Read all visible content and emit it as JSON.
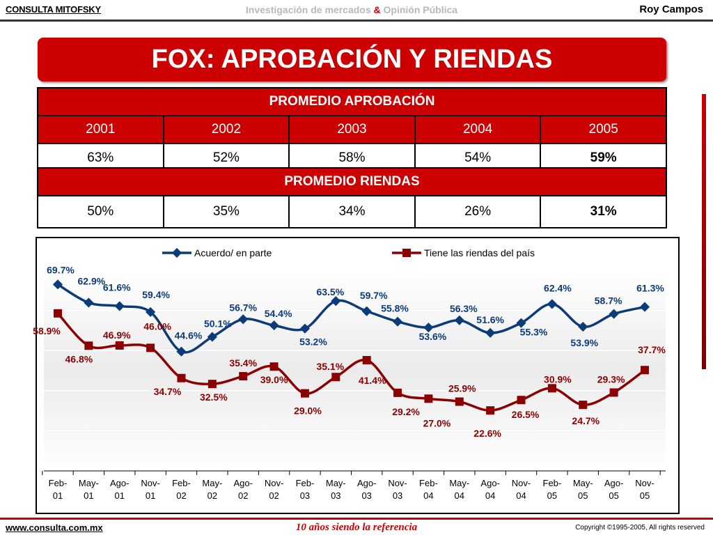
{
  "header": {
    "brand": "CONSULTA MITOFSKY",
    "tagline_part1": "Investigación de mercados ",
    "tagline_amp": "&",
    "tagline_part2": " Opinión Pública",
    "author": "Roy Campos"
  },
  "title": "FOX: APROBACIÓN Y RIENDAS",
  "approval_table": {
    "header": "PROMEDIO APROBACIÓN",
    "years": [
      "2001",
      "2002",
      "2003",
      "2004",
      "2005"
    ],
    "values": [
      "63%",
      "52%",
      "58%",
      "54%",
      "59%"
    ]
  },
  "reins_table": {
    "header": "PROMEDIO RIENDAS",
    "values": [
      "50%",
      "35%",
      "34%",
      "26%",
      "31%"
    ]
  },
  "chart_data": {
    "type": "line",
    "x": [
      "Feb-01",
      "May-01",
      "Ago-01",
      "Nov-01",
      "Feb-02",
      "May-02",
      "Ago-02",
      "Nov-02",
      "Feb-03",
      "May-03",
      "Ago-03",
      "Nov-03",
      "Feb-04",
      "May-04",
      "Ago-04",
      "Nov-04",
      "Feb-05",
      "May-05",
      "Ago-05",
      "Nov-05"
    ],
    "series": [
      {
        "name": "Acuerdo/ en parte",
        "color": "#0b3b78",
        "values": [
          69.7,
          62.9,
          61.6,
          59.4,
          44.6,
          50.1,
          56.7,
          54.4,
          53.2,
          63.5,
          59.7,
          55.8,
          53.6,
          56.3,
          51.6,
          55.3,
          62.4,
          53.9,
          58.7,
          61.3
        ],
        "labels": [
          "69.7%",
          "62.9%",
          "61.6%",
          "59.4%",
          "44.6%",
          "50.1%",
          "56.7%",
          "54.4%",
          "53.2%",
          "63.5%",
          "59.7%",
          "55.8%",
          "53.6%",
          "56.3%",
          "51.6%",
          "55.3%",
          "62.4%",
          "53.9%",
          "58.7%",
          "61.3%"
        ]
      },
      {
        "name": "Tiene las riendas del país",
        "color": "#8b0000",
        "values": [
          58.9,
          46.8,
          46.9,
          46.0,
          34.7,
          32.5,
          35.4,
          39.0,
          29.0,
          35.1,
          41.4,
          29.2,
          27.0,
          25.9,
          22.6,
          26.5,
          30.9,
          24.7,
          29.3,
          37.7
        ],
        "labels": [
          "58.9%",
          "46.8%",
          "46.9%",
          "46.0%",
          "34.7%",
          "32.5%",
          "35.4%",
          "39.0%",
          "29.0%",
          "35.1%",
          "41.4%",
          "29.2%",
          "27.0%",
          "25.9%",
          "22.6%",
          "26.5%",
          "30.9%",
          "24.7%",
          "29.3%",
          "37.7%"
        ]
      }
    ],
    "legend_position": "top",
    "grid": true
  },
  "footer": {
    "site": "www.consulta.com.mx",
    "slogan": "10 años siendo la referencia",
    "copyright": "Copyright ©1995-2005, All rights reserved"
  }
}
